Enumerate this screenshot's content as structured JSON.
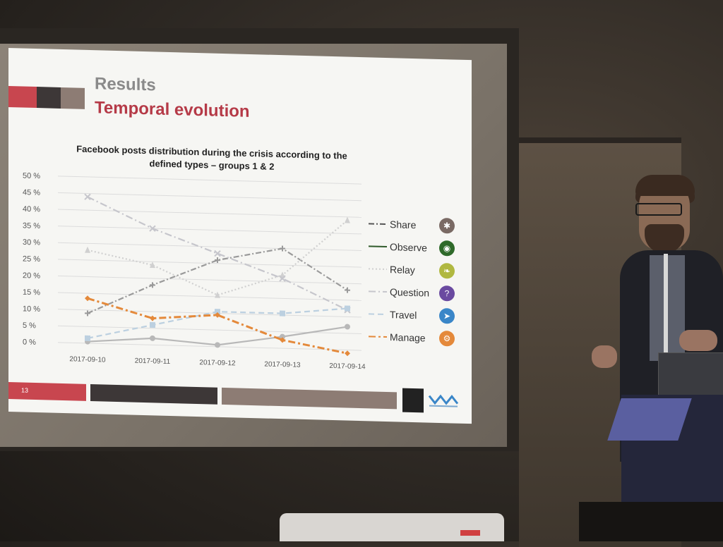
{
  "slide": {
    "title": "Results",
    "subtitle": "Temporal evolution",
    "page_number": "13",
    "colors": {
      "red": "#c8464f",
      "dark": "#3d3737",
      "taupe": "#8d7c74"
    }
  },
  "legend_icons": [
    "share-icon",
    "eye-icon",
    "ear-icon",
    "question-icon",
    "paper-plane-icon",
    "manage-icon"
  ],
  "chart_data": {
    "type": "line",
    "title": "Facebook posts distribution during the crisis according to the defined types – groups 1 & 2",
    "categories": [
      "2017-09-10",
      "2017-09-11",
      "2017-09-12",
      "2017-09-13",
      "2017-09-14"
    ],
    "ylim": [
      0,
      50
    ],
    "yticks": [
      "50 %",
      "45 %",
      "40 %",
      "35 %",
      "30 %",
      "25 %",
      "20 %",
      "15 %",
      "10 %",
      "5 %",
      "0 %"
    ],
    "grid": true,
    "legend_position": "right",
    "series": [
      {
        "name": "Share",
        "values": [
          9,
          18,
          26,
          30,
          18
        ],
        "color": "#9a9a9a",
        "dash": "8 3 2 3",
        "marker": "plus"
      },
      {
        "name": "Observe",
        "values": [
          0.5,
          2,
          0.5,
          3.5,
          7
        ],
        "color": "#b8b8b8",
        "dash": "",
        "marker": "circle"
      },
      {
        "name": "Relay",
        "values": [
          28,
          24,
          15.5,
          22,
          39
        ],
        "color": "#d0d0d0",
        "dash": "2 3",
        "marker": "triangle"
      },
      {
        "name": "Question",
        "values": [
          44,
          35,
          28,
          21,
          12
        ],
        "color": "#c6c6cc",
        "dash": "10 4 2 4",
        "marker": "cross"
      },
      {
        "name": "Travel",
        "values": [
          1.5,
          6,
          10.5,
          10.5,
          12.5
        ],
        "color": "#bcd0e0",
        "dash": "8 5",
        "marker": "square"
      },
      {
        "name": "Manage",
        "values": [
          13.5,
          8,
          9.5,
          2.5,
          -1
        ],
        "color": "#e4893a",
        "dash": "10 4 3 4",
        "marker": "diamond"
      }
    ],
    "legend_icon_colors": [
      "#7a6a64",
      "#2f6a2a",
      "#b0b840",
      "#6a4aa0",
      "#3a86c8",
      "#e4893a"
    ]
  }
}
